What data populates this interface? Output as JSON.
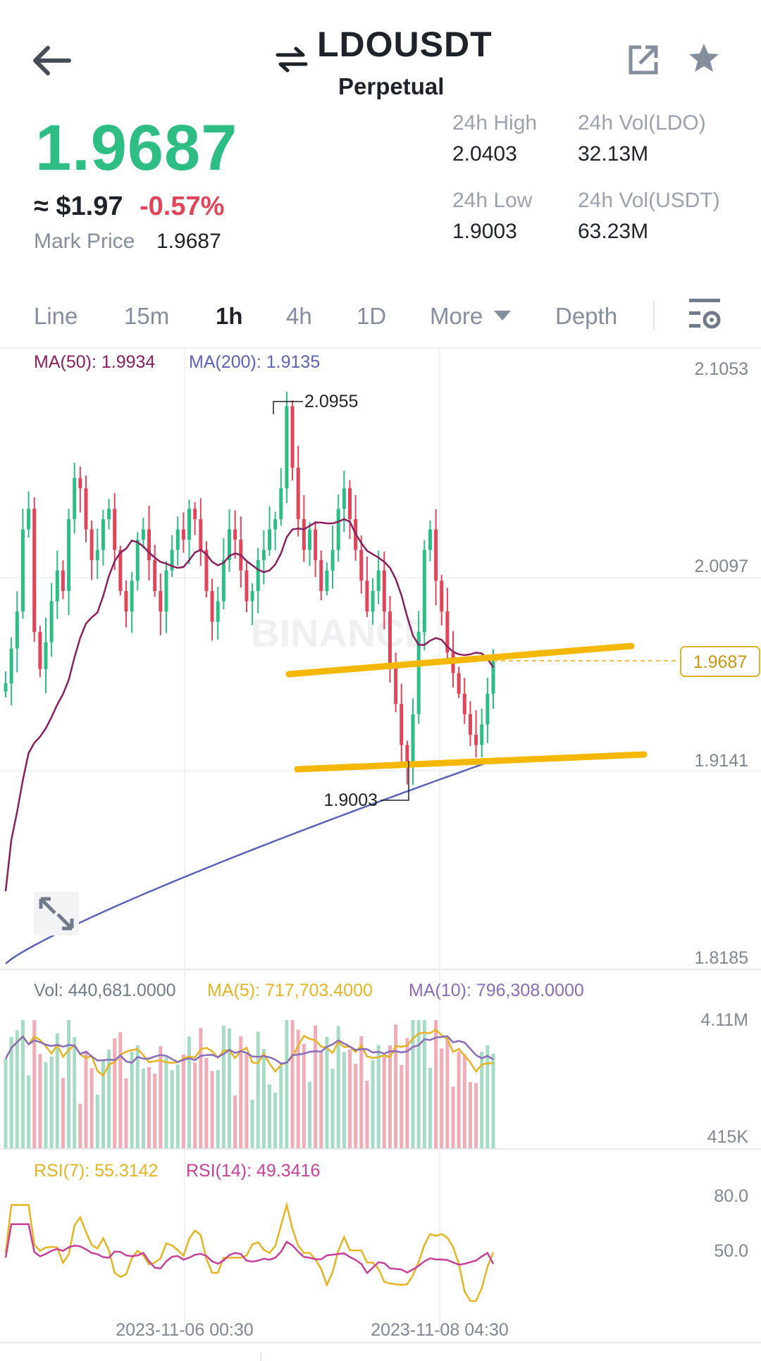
{
  "header": {
    "pair": "LDOUSDT",
    "contract_type": "Perpetual",
    "icons": [
      "back-arrow-icon",
      "swap-icon",
      "share-external-icon",
      "star-icon"
    ]
  },
  "price": {
    "last": "1.9687",
    "approx_usd": "≈ $1.97",
    "change_pct": "-0.57%",
    "mark_label": "Mark Price",
    "mark_value": "1.9687",
    "up_color": "#2ebd85",
    "down_color": "#e0455a"
  },
  "stats": {
    "high_label": "24h High",
    "high_value": "2.0403",
    "low_label": "24h Low",
    "low_value": "1.9003",
    "vol_ldo_label": "24h Vol(LDO)",
    "vol_ldo_value": "32.13M",
    "vol_usdt_label": "24h Vol(USDT)",
    "vol_usdt_value": "63.23M"
  },
  "timeframes": {
    "line": "Line",
    "m15": "15m",
    "h1": "1h",
    "h4": "4h",
    "d1": "1D",
    "more": "More",
    "depth": "Depth",
    "active": "1h"
  },
  "main_chart": {
    "ma50_label": "MA(50): 1.9934",
    "ma200_label": "MA(200): 1.9135",
    "ma50_color": "#8b1f5e",
    "ma200_color": "#5b62b8",
    "y_ticks": [
      "2.1053",
      "2.0097",
      "1.9141",
      "1.8185"
    ],
    "current_price_tag": "1.9687",
    "high_marker": "2.0955",
    "low_marker": "1.9003",
    "watermark": "BINANCE",
    "trendline_color": "#f5b800"
  },
  "volume_panel": {
    "vol_label": "Vol: 440,681.0000",
    "ma5_label": "MA(5): 717,703.4000",
    "ma10_label": "MA(10): 796,308.0000",
    "y_ticks": [
      "4.11M",
      "415K"
    ],
    "ma5_color": "#e6b422",
    "ma10_color": "#8a6bb8"
  },
  "rsi_panel": {
    "rsi7_label": "RSI(7): 55.3142",
    "rsi14_label": "RSI(14): 49.3416",
    "y_ticks": [
      "80.0",
      "50.0"
    ],
    "rsi7_color": "#e6b422",
    "rsi14_color": "#c7409a"
  },
  "x_axis": {
    "labels": [
      "2023-11-06 00:30",
      "2023-11-08 04:30"
    ]
  },
  "chart_data": {
    "type": "candlestick",
    "series": [
      {
        "name": "MA(50)",
        "last_value": 1.9934
      },
      {
        "name": "MA(200)",
        "last_value": 1.9135
      }
    ],
    "ylim": [
      1.8185,
      2.1053
    ],
    "high": 2.0955,
    "low": 1.9003,
    "last": 1.9687,
    "closes": [
      1.955,
      1.972,
      1.99,
      2.03,
      2.04,
      1.98,
      1.962,
      1.975,
      1.995,
      2.01,
      2.0,
      2.035,
      2.055,
      2.05,
      2.03,
      2.015,
      2.02,
      2.035,
      2.04,
      2.02,
      2.0,
      1.99,
      2.005,
      2.025,
      2.03,
      2.015,
      2.0,
      1.99,
      2.01,
      2.02,
      2.03,
      2.025,
      2.04,
      2.035,
      2.02,
      2.0,
      1.985,
      1.995,
      2.015,
      2.03,
      2.025,
      2.01,
      1.995,
      2.0,
      2.015,
      2.02,
      2.03,
      2.035,
      2.05,
      2.09,
      2.06,
      2.035,
      2.02,
      2.03,
      2.015,
      2.0,
      2.01,
      2.02,
      2.04,
      2.05,
      2.035,
      2.02,
      2.005,
      1.99,
      2.0,
      2.01,
      1.99,
      1.965,
      1.945,
      1.925,
      1.915,
      1.94,
      1.98,
      2.02,
      2.03,
      2.005,
      1.99,
      1.97,
      1.96,
      1.95,
      1.94,
      1.93,
      1.925,
      1.935,
      1.95,
      1.9687
    ],
    "rsi7_last": 55.3142,
    "rsi14_last": 49.3416,
    "volume_last": 440681.0,
    "volume_ma5_last": 717703.4,
    "volume_ma10_last": 796308.0
  }
}
